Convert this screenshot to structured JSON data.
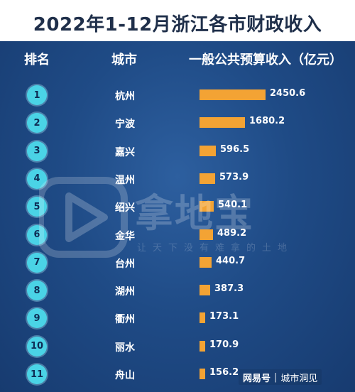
{
  "chart_data": {
    "type": "bar",
    "title": "2022年1-12月浙江各市财政收入",
    "columns": {
      "rank": "排名",
      "city": "城市",
      "value": "一般公共预算收入（亿元）"
    },
    "rows": [
      {
        "rank": "1",
        "city": "杭州",
        "value": 2450.6
      },
      {
        "rank": "2",
        "city": "宁波",
        "value": 1680.2
      },
      {
        "rank": "3",
        "city": "嘉兴",
        "value": 596.5
      },
      {
        "rank": "4",
        "city": "温州",
        "value": 573.9
      },
      {
        "rank": "5",
        "city": "绍兴",
        "value": 540.1
      },
      {
        "rank": "6",
        "city": "金华",
        "value": 489.2
      },
      {
        "rank": "7",
        "city": "台州",
        "value": 440.7
      },
      {
        "rank": "8",
        "city": "湖州",
        "value": 387.3
      },
      {
        "rank": "9",
        "city": "衢州",
        "value": 173.1
      },
      {
        "rank": "10",
        "city": "丽水",
        "value": 170.9
      },
      {
        "rank": "11",
        "city": "舟山",
        "value": 156.2
      }
    ],
    "colors": {
      "bar": "#f3a334",
      "rank_circle": "#4ad3e6",
      "background": "#1f4b86"
    }
  },
  "watermark": {
    "brand": "拿地宝",
    "slogan": "让天下没有难拿的土地"
  },
  "source": {
    "logo": "网易号",
    "separator": "|",
    "name": "城市洞见"
  }
}
